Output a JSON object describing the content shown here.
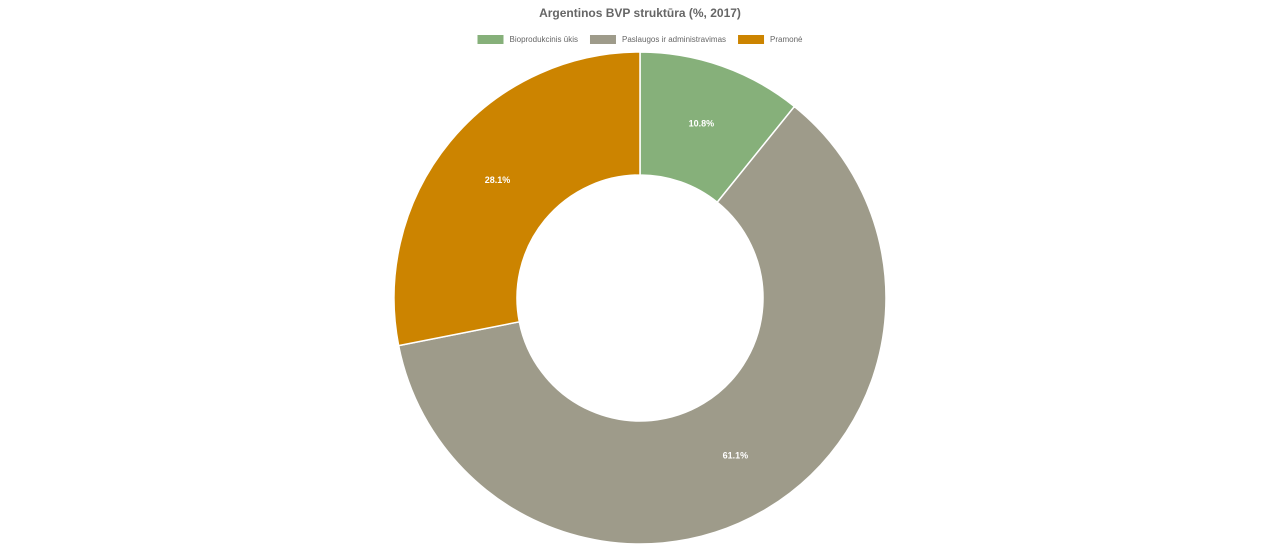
{
  "chart_data": {
    "type": "donut",
    "title": "Argentinos BVP struktūra (%, 2017)",
    "categories": [
      "Bioprodukcinis ūkis",
      "Paslaugos ir administravimas",
      "Pramonė"
    ],
    "values": [
      10.8,
      61.1,
      28.1
    ],
    "value_labels": [
      "10.8%",
      "61.1%",
      "28.1%"
    ],
    "colors": [
      "#86b07a",
      "#9e9b8a",
      "#cc8400"
    ]
  }
}
